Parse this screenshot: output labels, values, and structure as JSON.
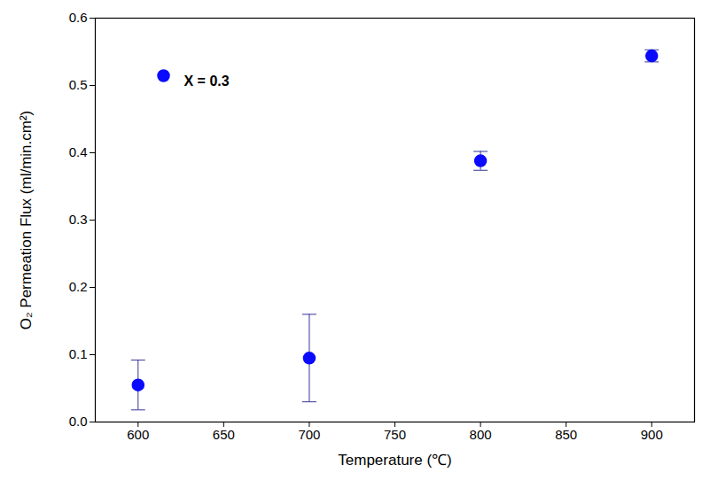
{
  "chart_data": {
    "type": "scatter",
    "xlabel": "Temperature (℃)",
    "ylabel": "O₂ Permeation Flux (ml/min.cm²)",
    "x": [
      600,
      700,
      800,
      900
    ],
    "series": [
      {
        "name": "X = 0.3",
        "color": "#0a0aff",
        "marker": "circle",
        "values": [
          0.055,
          0.095,
          0.388,
          0.544
        ],
        "errors": [
          0.037,
          0.065,
          0.014,
          0.009
        ]
      }
    ],
    "xlim": [
      575,
      925
    ],
    "xticks": [
      600,
      650,
      700,
      750,
      800,
      850,
      900
    ],
    "ylim": [
      0,
      0.6
    ],
    "yticks": [
      {
        "value": 0,
        "label": "0.0"
      },
      0.1,
      0.2,
      0.3,
      0.4,
      0.5,
      0.6
    ],
    "legend": "upper left",
    "grid": false
  }
}
